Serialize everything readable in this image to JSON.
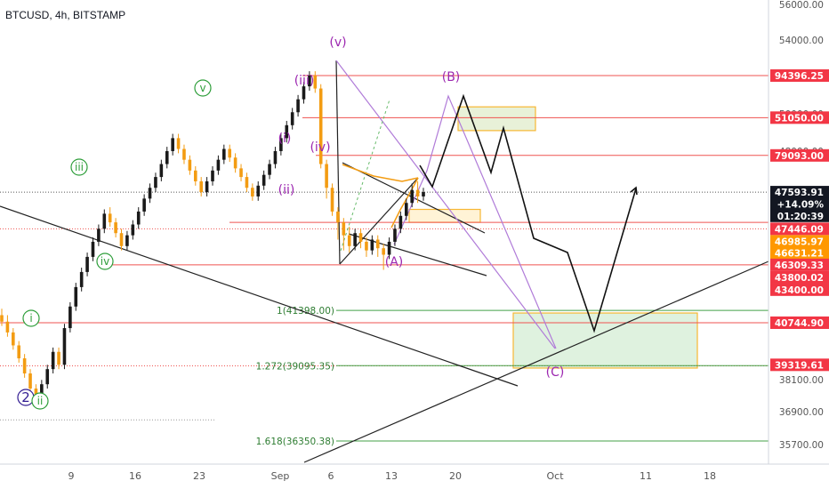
{
  "header": {
    "title": "BTCUSD, 4h, BITSTAMP"
  },
  "colors": {
    "red_line": "#e53935",
    "green_line": "#43a047",
    "purple": "#9c27b0",
    "wave_green": "#2e9e3a",
    "wave_navy": "#311b92",
    "orange_box": "#f7b733",
    "green_box_fill": "#dff2df",
    "candle_up": "#1a1a1a",
    "candle_down": "#f39c12"
  },
  "chart_data": {
    "type": "candlestick",
    "ylim": [
      35000,
      56500
    ],
    "x_tick_labels": [
      "9",
      "16",
      "23",
      "Sep",
      "6",
      "13",
      "20",
      "Oct",
      "11",
      "18"
    ],
    "y_axis_labels": [
      "56000.00",
      "54000.00",
      "52000.00",
      "50000.00",
      "48000.00",
      "38100.00",
      "36900.00",
      "35700.00"
    ],
    "price_tags": [
      {
        "label": "94396.25",
        "value": 53000,
        "style": "red"
      },
      {
        "label": "51050.00",
        "value": 51050,
        "style": "red"
      },
      {
        "label": "79093.00",
        "value": 49300,
        "style": "red"
      },
      {
        "label": "47593.91",
        "value": 47600,
        "style": "dark"
      },
      {
        "label": "+14.09%",
        "value": 47050,
        "style": "dark"
      },
      {
        "label": "01:20:39",
        "value": 46500,
        "style": "dark"
      },
      {
        "label": "47446.09",
        "value": 45900,
        "style": "red"
      },
      {
        "label": "46985.97",
        "value": 45320,
        "style": "orange"
      },
      {
        "label": "46631.21",
        "value": 44780,
        "style": "orange"
      },
      {
        "label": "46309.33",
        "value": 44230,
        "style": "red"
      },
      {
        "label": "43800.02",
        "value": 43650,
        "style": "red"
      },
      {
        "label": "43400.00",
        "value": 43080,
        "style": "red"
      },
      {
        "label": "40744.90",
        "value": 41550,
        "style": "red"
      },
      {
        "label": "39319.61",
        "value": 39600,
        "style": "red"
      }
    ],
    "fib_levels": [
      {
        "label": "1(41398.00)",
        "value": 42120
      },
      {
        "label": "1.272(39095.35)",
        "value": 39560
      },
      {
        "label": "1.618(36350.38)",
        "value": 36070
      }
    ],
    "waves": [
      {
        "label": "2",
        "style": "navy-circle"
      },
      {
        "label": "i",
        "style": "green-circle"
      },
      {
        "label": "ii",
        "style": "green-circle"
      },
      {
        "label": "iii",
        "style": "green-circle"
      },
      {
        "label": "iv",
        "style": "green-circle"
      },
      {
        "label": "v",
        "style": "green-circle"
      },
      {
        "label": "(i)",
        "style": "purple"
      },
      {
        "label": "(ii)",
        "style": "purple"
      },
      {
        "label": "(iii)",
        "style": "purple"
      },
      {
        "label": "(iv)",
        "style": "purple"
      },
      {
        "label": "(v)",
        "style": "purple"
      },
      {
        "label": "(A)",
        "style": "purple"
      },
      {
        "label": "(B)",
        "style": "purple"
      },
      {
        "label": "(C)",
        "style": "purple"
      }
    ],
    "projection_path": [
      47000,
      45900,
      51100,
      45700,
      49300,
      43400,
      45100,
      41000,
      44900,
      39200,
      45200
    ],
    "candles": [
      [
        41900,
        41600,
        42200,
        41400
      ],
      [
        41600,
        41100,
        41900,
        40900
      ],
      [
        41100,
        40500,
        41300,
        40300
      ],
      [
        40500,
        39900,
        40700,
        39700
      ],
      [
        39900,
        39200,
        40100,
        39000
      ],
      [
        39200,
        38500,
        39400,
        38300
      ],
      [
        38500,
        38000,
        38700,
        37700
      ],
      [
        38000,
        38700,
        38900,
        37800
      ],
      [
        38700,
        39400,
        39600,
        38500
      ],
      [
        39400,
        40200,
        40400,
        39200
      ],
      [
        40200,
        39600,
        40400,
        39400
      ],
      [
        39600,
        41300,
        41500,
        39400
      ],
      [
        41300,
        42300,
        42500,
        41100
      ],
      [
        42300,
        43200,
        43400,
        42100
      ],
      [
        43200,
        43900,
        44100,
        43000
      ],
      [
        43900,
        44600,
        44800,
        43700
      ],
      [
        44600,
        45300,
        45500,
        44400
      ],
      [
        45300,
        45900,
        46100,
        45100
      ],
      [
        45900,
        46600,
        46800,
        45700
      ],
      [
        46600,
        46200,
        46900,
        46000
      ],
      [
        46200,
        45700,
        46400,
        45500
      ],
      [
        45700,
        45100,
        45900,
        44900
      ],
      [
        45100,
        45600,
        45800,
        44900
      ],
      [
        45600,
        46100,
        46300,
        45400
      ],
      [
        46100,
        46700,
        46900,
        45900
      ],
      [
        46700,
        47300,
        47500,
        46500
      ],
      [
        47300,
        47800,
        48000,
        47100
      ],
      [
        47800,
        48300,
        48500,
        47600
      ],
      [
        48300,
        48900,
        49100,
        48100
      ],
      [
        48900,
        49500,
        49700,
        48700
      ],
      [
        49500,
        50100,
        50300,
        49300
      ],
      [
        50100,
        49600,
        50300,
        49400
      ],
      [
        49600,
        49100,
        49800,
        48900
      ],
      [
        49100,
        48600,
        49300,
        48400
      ],
      [
        48600,
        48100,
        48800,
        47900
      ],
      [
        48100,
        47600,
        48300,
        47400
      ],
      [
        47600,
        48100,
        48300,
        47400
      ],
      [
        48100,
        48600,
        48800,
        47900
      ],
      [
        48600,
        49100,
        49300,
        48400
      ],
      [
        49100,
        49600,
        49800,
        48900
      ],
      [
        49600,
        49200,
        49800,
        49000
      ],
      [
        49200,
        48700,
        49400,
        48500
      ],
      [
        48700,
        48300,
        48900,
        48100
      ],
      [
        48300,
        47800,
        48500,
        47600
      ],
      [
        47800,
        47400,
        48000,
        47200
      ],
      [
        47400,
        47900,
        48100,
        47200
      ],
      [
        47900,
        48400,
        48600,
        47700
      ],
      [
        48400,
        48900,
        49100,
        48200
      ],
      [
        48900,
        49500,
        49700,
        48700
      ],
      [
        49500,
        50100,
        50300,
        49300
      ],
      [
        50100,
        50700,
        50900,
        49900
      ],
      [
        50700,
        51300,
        51500,
        50500
      ],
      [
        51300,
        51900,
        52100,
        51100
      ],
      [
        51900,
        52500,
        52700,
        51700
      ],
      [
        52500,
        53000,
        53200,
        52300
      ],
      [
        53000,
        52400,
        53200,
        52200
      ],
      [
        52400,
        48900,
        52600,
        48700
      ],
      [
        48900,
        47800,
        49100,
        47300
      ],
      [
        47800,
        46700,
        48000,
        46500
      ],
      [
        46700,
        46200,
        46900,
        45400
      ],
      [
        46200,
        45600,
        46400,
        44900
      ],
      [
        45600,
        45100,
        46000,
        44800
      ],
      [
        45100,
        45700,
        45900,
        44900
      ],
      [
        45700,
        45300,
        45900,
        45000
      ],
      [
        45300,
        44900,
        45500,
        44600
      ],
      [
        44900,
        45400,
        45600,
        44700
      ],
      [
        45400,
        45000,
        45600,
        44600
      ],
      [
        45000,
        44700,
        45200,
        44000
      ],
      [
        44700,
        45300,
        45500,
        44500
      ],
      [
        45300,
        45900,
        46100,
        45100
      ],
      [
        45900,
        46500,
        46700,
        45700
      ],
      [
        46500,
        47100,
        47300,
        46300
      ],
      [
        47100,
        47700,
        48000,
        46900
      ],
      [
        47700,
        47400,
        48100,
        47100
      ],
      [
        47400,
        47600,
        47800,
        47200
      ]
    ]
  }
}
